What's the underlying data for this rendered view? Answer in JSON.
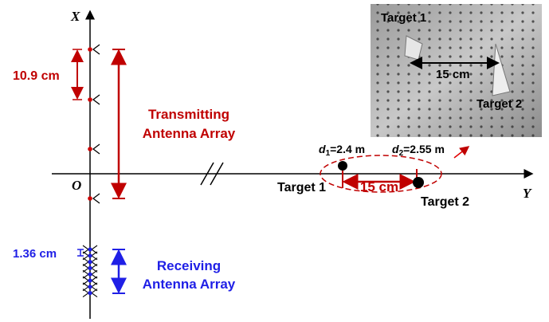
{
  "axes": {
    "x": "X",
    "y": "Y",
    "origin": "O"
  },
  "transmitting": {
    "spacing": "10.9 cm",
    "label": [
      "Transmitting",
      "Antenna Array"
    ]
  },
  "receiving": {
    "spacing": "1.36 cm",
    "label": [
      "Receiving",
      "Antenna Array"
    ]
  },
  "targets": {
    "target1": "Target 1",
    "target2": "Target 2",
    "separation": "15 cm",
    "d1": {
      "symbol": "d",
      "subscript": "1",
      "value": "=2.4 m"
    },
    "d2": {
      "symbol": "d",
      "subscript": "2",
      "value": "=2.55 m"
    }
  },
  "photo": {
    "target1": "Target 1",
    "target2": "Target 2",
    "separation": "15 cm"
  }
}
